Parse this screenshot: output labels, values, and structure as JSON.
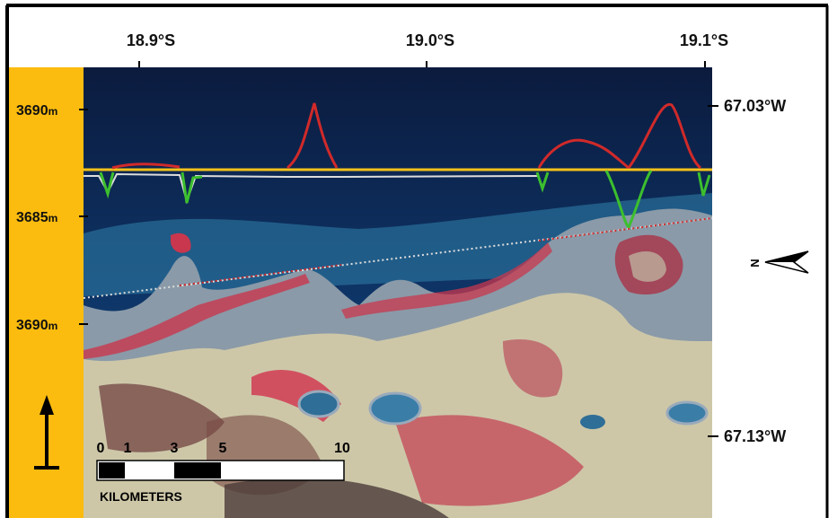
{
  "header": {
    "latitude_labels": [
      "18.9°S",
      "19.0°S",
      "19.1°S"
    ]
  },
  "left_axis": {
    "elevation_labels": [
      {
        "value": "3690",
        "unit": "m"
      },
      {
        "value": "3685",
        "unit": "m"
      },
      {
        "value": "3690",
        "unit": "m"
      }
    ]
  },
  "right_axis": {
    "longitude_labels": [
      "67.03°W",
      "67.13°W"
    ]
  },
  "north_arrow": {
    "label": "N"
  },
  "scale_bar": {
    "ticks": [
      "0",
      "1",
      "3",
      "5",
      "10"
    ],
    "unit": "KILOMETERS"
  }
}
